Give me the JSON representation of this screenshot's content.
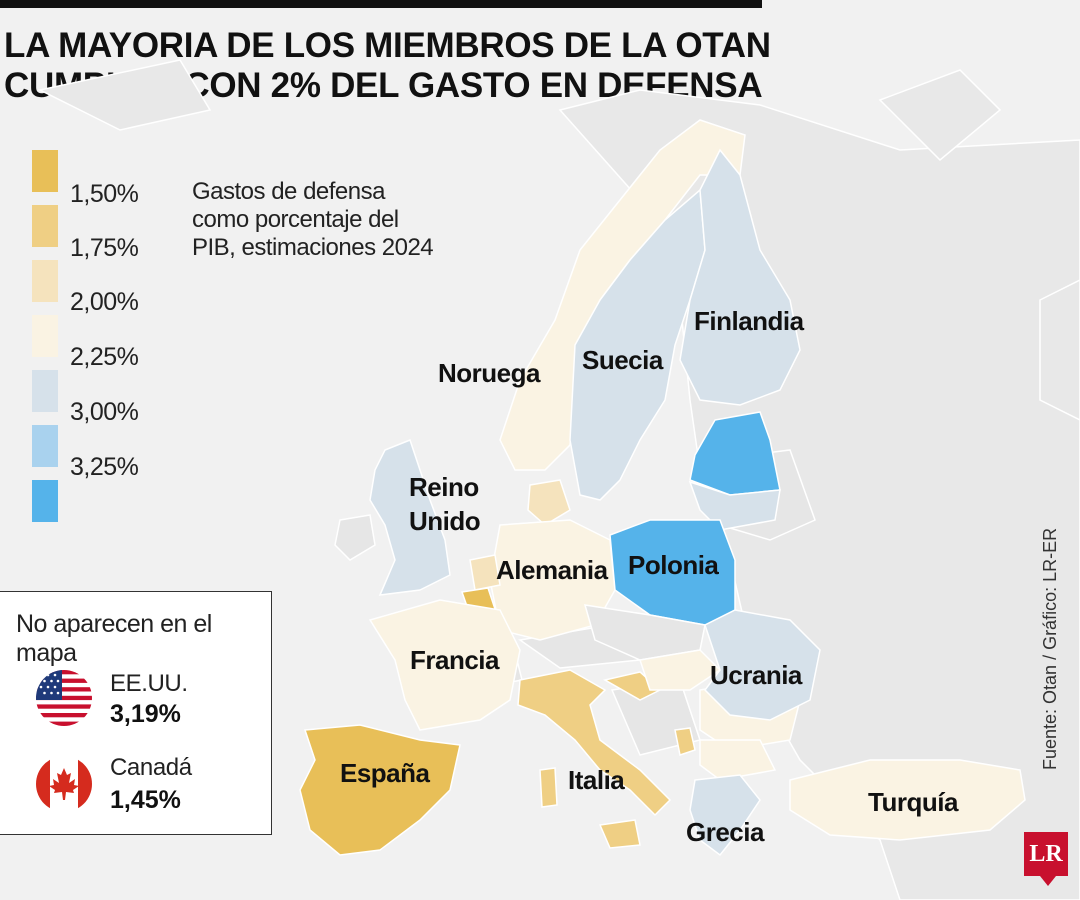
{
  "title": {
    "line1": "LA MAYORIA DE LOS MIEMBROS DE LA OTAN",
    "line2": "CUMPLEN CON 2% DEL GASTO EN DEFENSA"
  },
  "legend": {
    "note": [
      "Gastos de defensa",
      "como porcentaje del",
      "PIB, estimaciones 2024"
    ],
    "items": [
      {
        "label": "1,50%",
        "color": "#e8bf58"
      },
      {
        "label": "1,75%",
        "color": "#efcf84"
      },
      {
        "label": "2,00%",
        "color": "#f5e3bd"
      },
      {
        "label": "2,25%",
        "color": "#faf3e3"
      },
      {
        "label": "3,00%",
        "color": "#d6e1ea"
      },
      {
        "label": "3,25%",
        "color": "#a9d2ee"
      },
      {
        "label": "",
        "color": "#55b3ea"
      }
    ]
  },
  "countries": {
    "finlandia": "Finlandia",
    "suecia": "Suecia",
    "noruega": "Noruega",
    "reino_unido": [
      "Reino",
      "Unido"
    ],
    "alemania": "Alemania",
    "polonia": "Polonia",
    "francia": "Francia",
    "ucrania": "Ucrania",
    "espana": "España",
    "italia": "Italia",
    "turquia": "Turquía",
    "grecia": "Grecia"
  },
  "absent": {
    "title": "No aparecen en el mapa",
    "items": [
      {
        "name": "EE.UU.",
        "value": "3,19%",
        "icon": "us-flag-icon"
      },
      {
        "name": "Canadá",
        "value": "1,45%",
        "icon": "canada-flag-icon"
      }
    ]
  },
  "source": "Fuente: Otan / Gráfico: LR-ER",
  "logo": "LR",
  "colors": {
    "background": "#f1f1f1",
    "neutral_land": "#e9e9e9",
    "border": "#ffffff"
  }
}
